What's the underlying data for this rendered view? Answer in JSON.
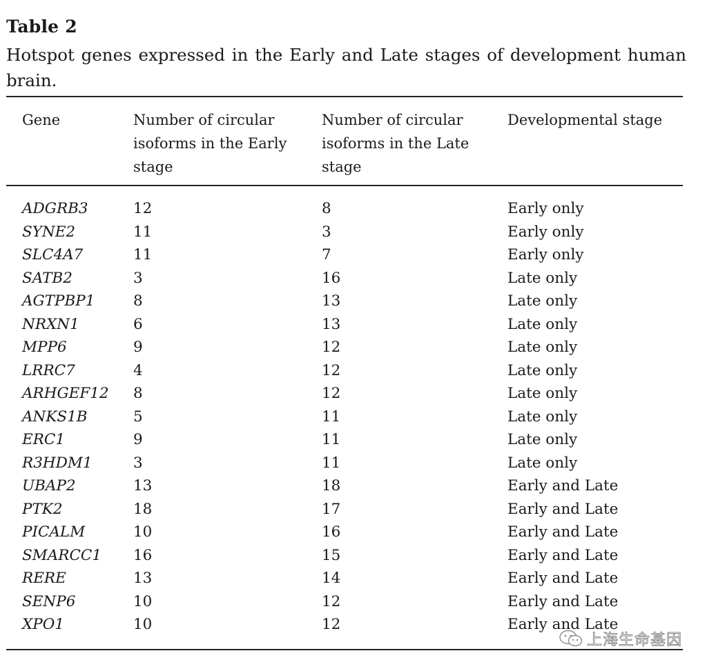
{
  "table": {
    "title": "Table 2",
    "caption": "Hotspot genes expressed in the Early and Late stages of development human brain.",
    "headers": {
      "gene": "Gene",
      "early": "Number of circular\nisoforms in the Early\nstage",
      "late": "Number of circular\nisoforms in the Late\nstage",
      "stage": "Developmental stage"
    },
    "rows": [
      {
        "gene": "ADGRB3",
        "early": "12",
        "late": "8",
        "stage": "Early only"
      },
      {
        "gene": "SYNE2",
        "early": "11",
        "late": "3",
        "stage": "Early only"
      },
      {
        "gene": "SLC4A7",
        "early": "11",
        "late": "7",
        "stage": "Early only"
      },
      {
        "gene": "SATB2",
        "early": "3",
        "late": "16",
        "stage": "Late only"
      },
      {
        "gene": "AGTPBP1",
        "early": "8",
        "late": "13",
        "stage": "Late only"
      },
      {
        "gene": "NRXN1",
        "early": "6",
        "late": "13",
        "stage": "Late only"
      },
      {
        "gene": "MPP6",
        "early": "9",
        "late": "12",
        "stage": "Late only"
      },
      {
        "gene": "LRRC7",
        "early": "4",
        "late": "12",
        "stage": "Late only"
      },
      {
        "gene": "ARHGEF12",
        "early": "8",
        "late": "12",
        "stage": "Late only"
      },
      {
        "gene": "ANKS1B",
        "early": "5",
        "late": "11",
        "stage": "Late only"
      },
      {
        "gene": "ERC1",
        "early": "9",
        "late": "11",
        "stage": "Late only"
      },
      {
        "gene": "R3HDM1",
        "early": "3",
        "late": "11",
        "stage": "Late only"
      },
      {
        "gene": "UBAP2",
        "early": "13",
        "late": "18",
        "stage": "Early and Late"
      },
      {
        "gene": "PTK2",
        "early": "18",
        "late": "17",
        "stage": "Early and Late"
      },
      {
        "gene": "PICALM",
        "early": "10",
        "late": "16",
        "stage": "Early and Late"
      },
      {
        "gene": "SMARCC1",
        "early": "16",
        "late": "15",
        "stage": "Early and Late"
      },
      {
        "gene": "RERE",
        "early": "13",
        "late": "14",
        "stage": "Early and Late"
      },
      {
        "gene": "SENP6",
        "early": "10",
        "late": "12",
        "stage": "Early and Late"
      },
      {
        "gene": "XPO1",
        "early": "10",
        "late": "12",
        "stage": "Early and Late"
      }
    ]
  },
  "watermark": {
    "icon": "wechat-icon",
    "text": "上海生命基因"
  }
}
